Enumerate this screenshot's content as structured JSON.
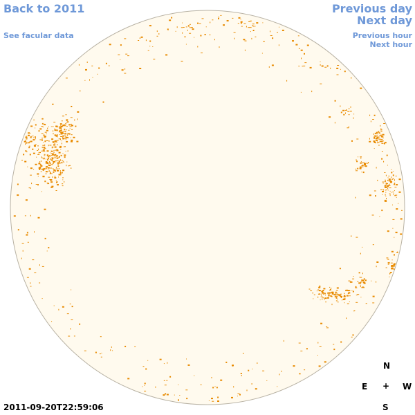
{
  "nav": {
    "back_label": "Back to 2011",
    "facular_label": "See facular data",
    "previous_day_label": "Previous day",
    "next_day_label": "Next day",
    "previous_hour_label": "Previous hour",
    "next_hour_label": "Next hour"
  },
  "timestamp": "2011-09-20T22:59:06",
  "compass": {
    "n": "N",
    "e": "E",
    "center": "+",
    "w": "W",
    "s": "S"
  },
  "colors": {
    "link": "#6e98d8",
    "disk_fill": "#fffaee",
    "disk_outline": "#b8b2a4",
    "facula": "#e88a00"
  }
}
